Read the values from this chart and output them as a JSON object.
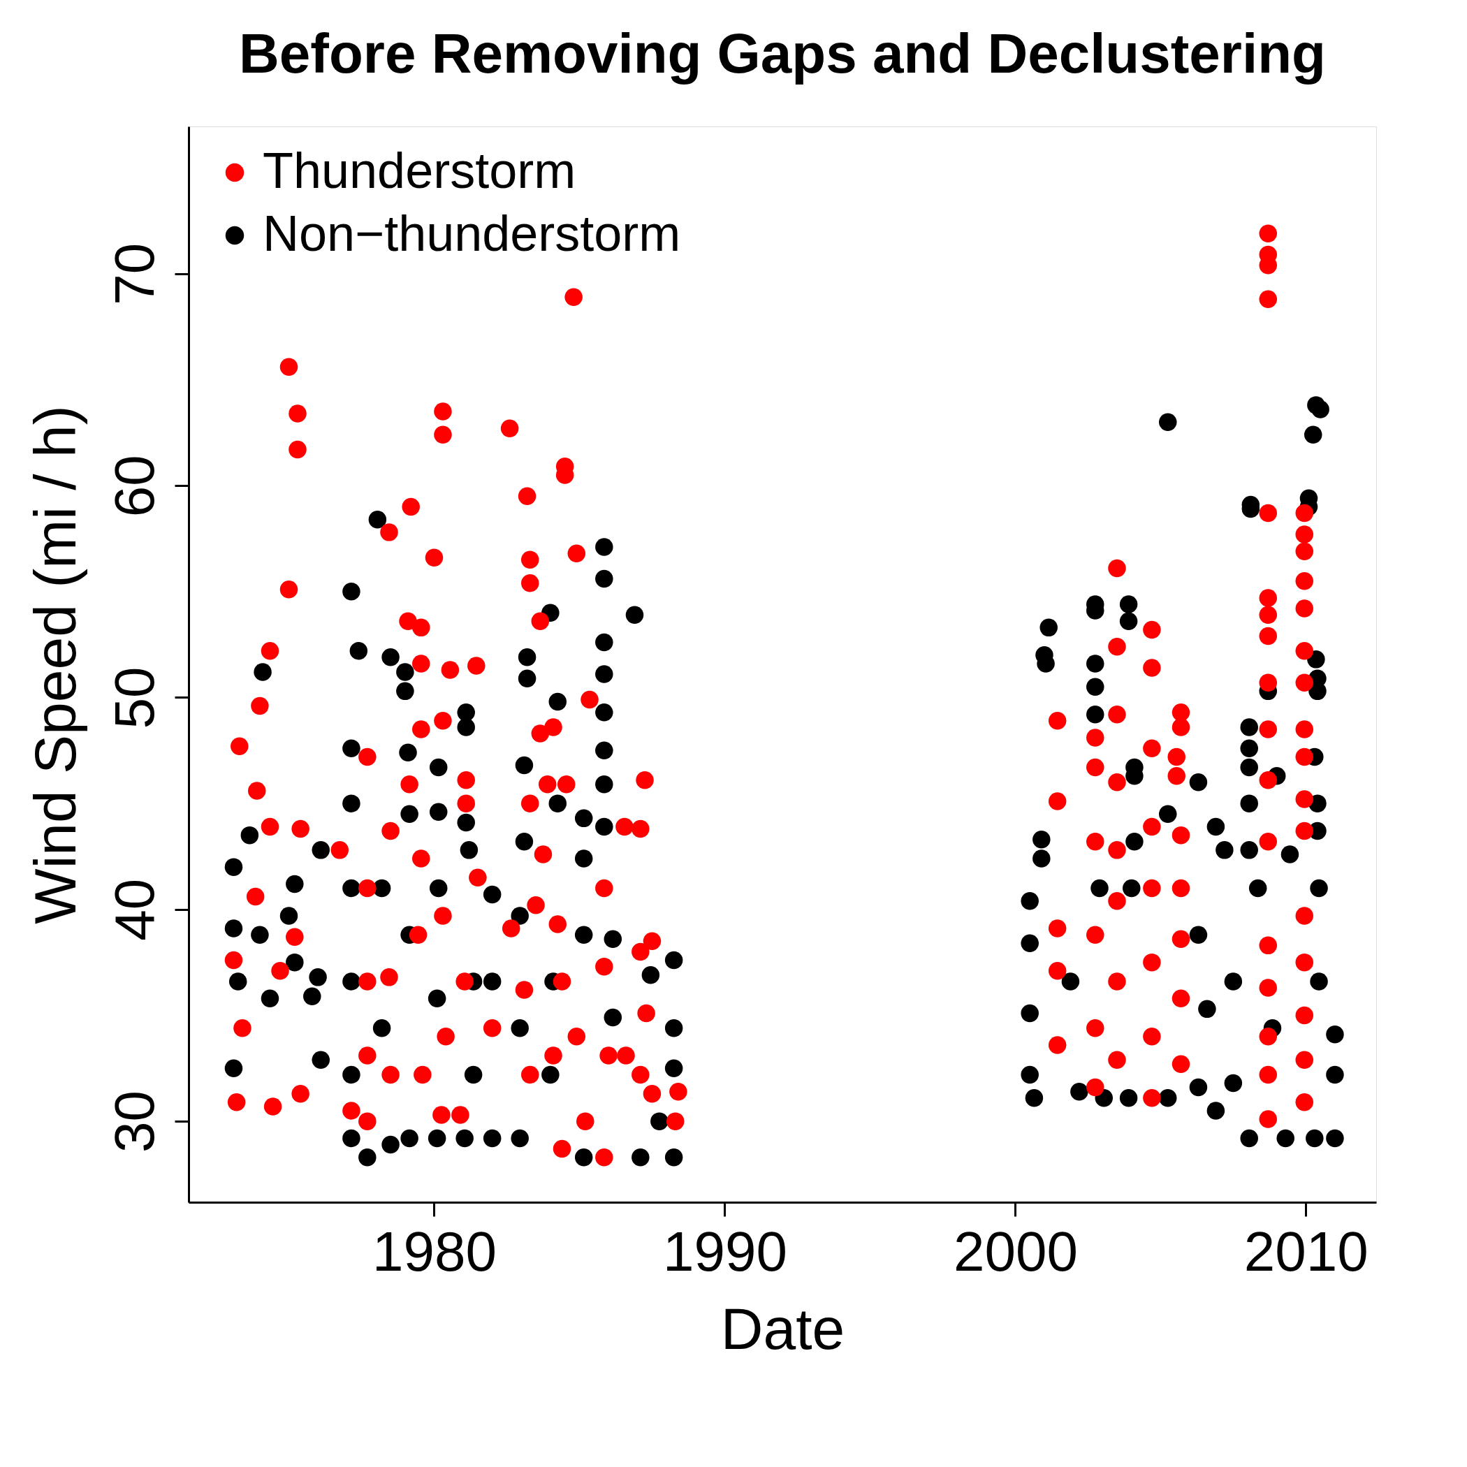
{
  "chart_data": {
    "type": "scatter",
    "title": "Before Removing Gaps and Declustering",
    "xlabel": "Date",
    "ylabel": "Wind Speed (mi / h)",
    "xlim": [
      1971.55,
      2012.42
    ],
    "xticks": [
      1980,
      1990,
      2000,
      2010
    ],
    "ylim": [
      26.18,
      76.95
    ],
    "yticks": [
      30,
      40,
      50,
      60,
      70
    ],
    "grid": false,
    "legend": "top left",
    "marker": "circle",
    "series": [
      {
        "name": "Thunderstorm",
        "color": "#ff0000",
        "x": [
          1975.0,
          1975.3,
          1975.3,
          1975.0,
          1974.35,
          1974.0,
          1973.3,
          1973.9,
          1974.35,
          1975.4,
          1973.85,
          1973.1,
          1973.4,
          1973.2,
          1974.45,
          1974.7,
          1975.2,
          1975.4,
          1976.75,
          1977.7,
          1977.7,
          1977.7,
          1977.7,
          1977.7,
          1977.15,
          1978.45,
          1978.5,
          1978.45,
          1978.5,
          1979.2,
          1979.1,
          1979.55,
          1979.55,
          1979.55,
          1979.15,
          1979.55,
          1979.45,
          1979.6,
          1980.0,
          1980.3,
          1980.3,
          1980.3,
          1980.3,
          1980.4,
          1980.25,
          1981.45,
          1980.55,
          1981.1,
          1981.1,
          1981.5,
          1981.05,
          1980.9,
          1982.0,
          1982.6,
          1983.2,
          1983.3,
          1983.3,
          1983.65,
          1983.65,
          1984.1,
          1984.5,
          1984.5,
          1984.8,
          1984.9,
          1985.35,
          1983.9,
          1984.55,
          1983.3,
          1983.75,
          1983.5,
          1984.25,
          1983.1,
          1984.4,
          1984.1,
          1984.4,
          1985.2,
          1985.85,
          1985.85,
          1986.0,
          1985.85,
          1986.55,
          1987.1,
          1987.25,
          1987.5,
          1987.1,
          1987.3,
          1987.1,
          1987.5,
          1988.3,
          1988.4,
          1982.65,
          1983.3,
          1984.9,
          1986.6,
          2001.45,
          2001.45,
          2001.45,
          2001.45,
          2001.45,
          2002.75,
          2002.75,
          2002.75,
          2002.75,
          2002.75,
          2002.75,
          2003.5,
          2003.5,
          2003.5,
          2003.5,
          2003.5,
          2003.5,
          2003.5,
          2003.5,
          2004.7,
          2004.7,
          2004.7,
          2004.7,
          2004.7,
          2004.7,
          2004.7,
          2004.7,
          2005.7,
          2005.7,
          2005.55,
          2005.55,
          2005.7,
          2005.7,
          2005.7,
          2005.7,
          2005.7,
          2008.7,
          2008.7,
          2008.7,
          2008.7,
          2008.7,
          2008.7,
          2008.7,
          2008.7,
          2008.7,
          2008.7,
          2008.7,
          2008.7,
          2008.7,
          2008.7,
          2008.7,
          2008.7,
          2008.7,
          2009.95,
          2009.95,
          2009.95,
          2009.95,
          2009.95,
          2009.95,
          2009.95,
          2009.95,
          2009.95,
          2009.95,
          2009.95,
          2009.95,
          2009.95,
          2009.95,
          2009.95,
          2009.95
        ],
        "values": [
          65.6,
          63.4,
          61.7,
          55.1,
          52.2,
          49.6,
          47.7,
          45.6,
          43.9,
          43.8,
          40.6,
          37.6,
          34.4,
          30.9,
          30.7,
          37.1,
          38.7,
          31.3,
          42.8,
          47.2,
          41.0,
          36.6,
          33.1,
          30.0,
          30.5,
          57.8,
          43.7,
          36.8,
          32.2,
          59.0,
          53.6,
          53.3,
          51.6,
          48.5,
          45.9,
          42.4,
          38.8,
          32.2,
          56.6,
          63.5,
          62.4,
          48.9,
          39.7,
          34.0,
          30.3,
          51.5,
          51.3,
          46.1,
          45.0,
          41.5,
          36.6,
          30.3,
          34.4,
          62.7,
          59.5,
          56.5,
          55.4,
          53.6,
          48.3,
          48.6,
          60.9,
          60.5,
          68.9,
          56.8,
          49.9,
          45.9,
          45.9,
          45.0,
          42.6,
          40.2,
          39.3,
          36.2,
          36.6,
          33.1,
          28.7,
          30.0,
          41.0,
          37.3,
          33.1,
          28.3,
          43.9,
          43.8,
          46.1,
          38.5,
          38.0,
          35.1,
          32.2,
          31.3,
          30.0,
          31.4,
          39.1,
          32.2,
          34.0,
          33.1,
          48.9,
          45.1,
          39.1,
          37.1,
          33.6,
          48.1,
          46.7,
          43.2,
          38.8,
          34.4,
          31.6,
          56.1,
          52.4,
          49.2,
          46.0,
          42.8,
          40.4,
          36.6,
          32.9,
          53.2,
          51.4,
          47.6,
          43.9,
          41.0,
          37.5,
          34.0,
          31.1,
          49.3,
          48.6,
          47.2,
          46.3,
          43.5,
          41.0,
          38.6,
          35.8,
          32.7,
          71.9,
          70.9,
          70.4,
          68.8,
          58.7,
          54.7,
          53.9,
          52.9,
          50.7,
          48.5,
          46.1,
          43.2,
          38.3,
          36.3,
          34.0,
          32.2,
          30.1,
          58.7,
          57.7,
          56.9,
          55.5,
          54.2,
          52.2,
          50.7,
          48.5,
          47.2,
          45.2,
          43.7,
          39.7,
          37.5,
          35.0,
          32.9,
          30.9
        ]
      },
      {
        "name": "Non−thunderstorm",
        "color": "#000000",
        "x": [
          1973.1,
          1973.1,
          1973.25,
          1973.1,
          1973.65,
          1974.1,
          1974.0,
          1974.35,
          1975.2,
          1975.0,
          1975.2,
          1975.8,
          1976.0,
          1976.1,
          1976.1,
          1977.15,
          1977.4,
          1977.15,
          1977.15,
          1977.15,
          1977.15,
          1977.15,
          1977.15,
          1977.7,
          1978.05,
          1978.5,
          1978.2,
          1978.2,
          1978.5,
          1979.0,
          1979.0,
          1979.1,
          1979.15,
          1979.15,
          1979.15,
          1980.15,
          1980.15,
          1980.15,
          1980.1,
          1980.1,
          1981.1,
          1981.1,
          1981.1,
          1981.2,
          1981.35,
          1981.05,
          1982.0,
          1982.0,
          1982.0,
          1981.35,
          1983.1,
          1983.2,
          1983.2,
          1983.1,
          1982.95,
          1982.95,
          1982.95,
          1984.0,
          1984.25,
          1984.25,
          1984.1,
          1984.0,
          1985.15,
          1985.15,
          1985.15,
          1985.15,
          1985.85,
          1985.85,
          1985.85,
          1985.85,
          1985.85,
          1985.85,
          1985.85,
          1985.85,
          1986.15,
          1986.15,
          1986.9,
          1987.45,
          1987.1,
          1988.25,
          1988.25,
          1988.25,
          1988.25,
          1987.75,
          2000.5,
          2000.5,
          2000.5,
          2000.5,
          2000.65,
          2001.0,
          2001.05,
          2001.15,
          2000.9,
          2000.9,
          2001.9,
          2002.2,
          2002.75,
          2002.75,
          2002.75,
          2002.75,
          2002.75,
          2002.9,
          2003.05,
          2003.9,
          2003.9,
          2004.1,
          2004.1,
          2004.1,
          2004.0,
          2003.9,
          2005.25,
          2005.25,
          2005.25,
          2006.3,
          2006.3,
          2006.3,
          2006.9,
          2007.2,
          2007.5,
          2007.5,
          2008.05,
          2008.05,
          2008.05,
          2008.05,
          2008.05,
          2008.05,
          2008.1,
          2008.1,
          2008.35,
          2008.7,
          2009.0,
          2009.3,
          2009.45,
          2010.1,
          2010.1,
          2010.25,
          2010.35,
          2010.5,
          2010.35,
          2010.4,
          2010.4,
          2010.3,
          2010.4,
          2010.4,
          2010.45,
          2010.45,
          2010.3,
          2011.0,
          2011.0,
          2011.0,
          2008.85,
          2006.6,
          2006.9
        ],
        "values": [
          42.0,
          39.1,
          36.6,
          32.5,
          43.5,
          51.2,
          38.8,
          35.8,
          41.2,
          39.7,
          37.5,
          35.9,
          36.8,
          42.8,
          32.9,
          55.0,
          52.2,
          47.6,
          45.0,
          41.0,
          36.6,
          32.2,
          29.2,
          28.3,
          58.4,
          51.9,
          41.0,
          34.4,
          28.9,
          51.2,
          50.3,
          47.4,
          44.5,
          38.8,
          29.2,
          46.7,
          44.6,
          41.0,
          35.8,
          29.2,
          49.3,
          48.6,
          44.1,
          42.8,
          36.6,
          29.2,
          40.7,
          36.6,
          29.2,
          32.2,
          46.8,
          51.9,
          50.9,
          43.2,
          39.7,
          34.4,
          29.2,
          54.0,
          49.8,
          45.0,
          36.6,
          32.2,
          44.3,
          42.4,
          38.8,
          28.3,
          57.1,
          55.6,
          52.6,
          51.1,
          49.3,
          47.5,
          45.9,
          43.9,
          38.6,
          34.9,
          53.9,
          36.9,
          28.3,
          37.6,
          34.4,
          32.5,
          28.3,
          30.0,
          40.4,
          38.4,
          35.1,
          32.2,
          31.1,
          52.0,
          51.6,
          53.3,
          43.3,
          42.4,
          36.6,
          31.4,
          54.4,
          54.1,
          51.6,
          50.5,
          49.2,
          41.0,
          31.1,
          54.4,
          53.6,
          46.7,
          46.3,
          43.2,
          41.0,
          31.1,
          63.0,
          44.5,
          31.1,
          46.0,
          38.8,
          31.6,
          43.9,
          42.8,
          36.6,
          31.8,
          48.6,
          47.6,
          46.7,
          45.0,
          42.8,
          29.2,
          59.1,
          58.9,
          41.0,
          50.3,
          46.3,
          29.2,
          42.6,
          59.4,
          59.0,
          62.4,
          63.8,
          63.6,
          51.8,
          50.9,
          50.3,
          47.2,
          45.0,
          43.7,
          41.0,
          36.6,
          29.2,
          34.1,
          32.2,
          29.2,
          34.4,
          35.3,
          30.5
        ]
      }
    ]
  }
}
